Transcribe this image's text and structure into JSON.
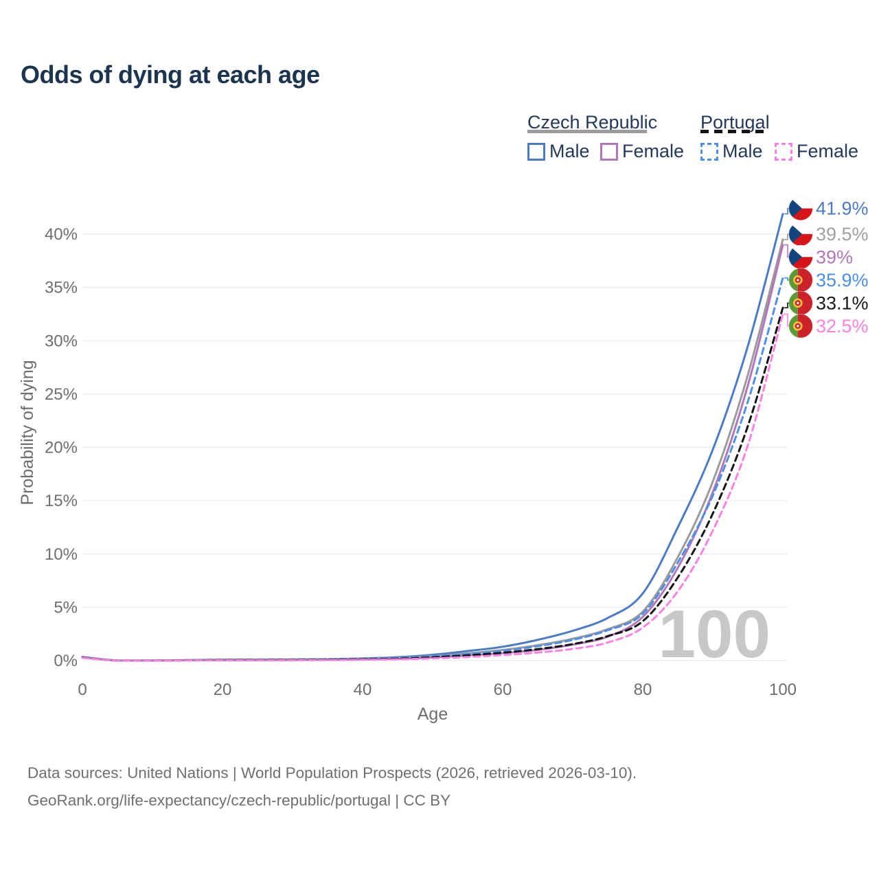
{
  "title": "Odds of dying at each age",
  "legend": {
    "groups": [
      {
        "label": "Czech Republic",
        "line_style": "solid",
        "line_color": "#9b9b9b",
        "items": [
          {
            "label": "Male",
            "color": "#4a7bc4",
            "dash": false
          },
          {
            "label": "Female",
            "color": "#b277b8",
            "dash": false
          }
        ]
      },
      {
        "label": "Portugal",
        "line_style": "dashed",
        "line_color": "#141414",
        "items": [
          {
            "label": "Male",
            "color": "#4a90e8",
            "dash": true
          },
          {
            "label": "Female",
            "color": "#fb80e3",
            "dash": true
          }
        ]
      }
    ]
  },
  "chart_data": {
    "type": "line",
    "title": "Odds of dying at each age",
    "xlabel": "Age",
    "ylabel": "Probability of dying",
    "xlim": [
      0,
      100
    ],
    "ylim": [
      0,
      43
    ],
    "grid": "horizontal",
    "watermark": "100",
    "x_ticks": [
      {
        "value": 0,
        "label": "0"
      },
      {
        "value": 20,
        "label": "20"
      },
      {
        "value": 40,
        "label": "40"
      },
      {
        "value": 60,
        "label": "60"
      },
      {
        "value": 80,
        "label": "80"
      },
      {
        "value": 100,
        "label": "100"
      }
    ],
    "y_ticks": [
      {
        "value": 0,
        "label": "0%"
      },
      {
        "value": 5,
        "label": "5%"
      },
      {
        "value": 10,
        "label": "10%"
      },
      {
        "value": 15,
        "label": "15%"
      },
      {
        "value": 20,
        "label": "20%"
      },
      {
        "value": 25,
        "label": "25%"
      },
      {
        "value": 30,
        "label": "30%"
      },
      {
        "value": 35,
        "label": "35%"
      },
      {
        "value": 40,
        "label": "40%"
      }
    ],
    "ages": [
      0,
      5,
      10,
      15,
      20,
      25,
      30,
      35,
      40,
      45,
      50,
      55,
      60,
      65,
      70,
      75,
      80,
      85,
      90,
      95,
      100
    ],
    "series": [
      {
        "name": "Czech Republic Male",
        "country": "Czech Republic",
        "sex": "Male",
        "flag": "cz",
        "color": "#4a7bc4",
        "label_color": "#4a7bc4",
        "dash": false,
        "end_label": "41.9%",
        "values": [
          0.35,
          0.01,
          0.01,
          0.05,
          0.09,
          0.1,
          0.11,
          0.14,
          0.2,
          0.32,
          0.55,
          0.9,
          1.3,
          1.95,
          2.8,
          4.0,
          6.3,
          12.5,
          19.8,
          29.5,
          41.9
        ]
      },
      {
        "name": "Czech Republic Both sexes",
        "country": "Czech Republic",
        "sex": "Both",
        "flag": "cz",
        "color": "#9b9b9b",
        "label_color": "#a0a0a0",
        "dash": false,
        "end_label": "39.5%",
        "values": [
          0.32,
          0.01,
          0.01,
          0.04,
          0.06,
          0.07,
          0.08,
          0.11,
          0.15,
          0.24,
          0.42,
          0.68,
          1.0,
          1.45,
          2.05,
          2.95,
          4.6,
          9.7,
          16.8,
          26.8,
          39.5
        ]
      },
      {
        "name": "Czech Republic Female",
        "country": "Czech Republic",
        "sex": "Female",
        "flag": "cz",
        "color": "#b277b8",
        "label_color": "#b277b8",
        "dash": false,
        "end_label": "39%",
        "values": [
          0.3,
          0.01,
          0.01,
          0.03,
          0.04,
          0.05,
          0.06,
          0.08,
          0.11,
          0.17,
          0.3,
          0.48,
          0.7,
          1.0,
          1.5,
          2.25,
          4.1,
          8.7,
          15.8,
          25.8,
          39.0
        ]
      },
      {
        "name": "Portugal Male",
        "country": "Portugal",
        "sex": "Male",
        "flag": "pt",
        "color": "#4a90e8",
        "label_color": "#4a90e8",
        "dash": true,
        "end_label": "35.9%",
        "values": [
          0.3,
          0.01,
          0.01,
          0.04,
          0.06,
          0.07,
          0.08,
          0.11,
          0.15,
          0.24,
          0.4,
          0.62,
          0.92,
          1.35,
          1.95,
          2.85,
          4.4,
          9.2,
          15.5,
          24.3,
          35.9
        ]
      },
      {
        "name": "Portugal Both sexes",
        "country": "Portugal",
        "sex": "Both",
        "flag": "pt",
        "color": "#141414",
        "label_color": "#1a1a1a",
        "dash": true,
        "end_label": "33.1%",
        "values": [
          0.28,
          0.01,
          0.01,
          0.03,
          0.05,
          0.05,
          0.06,
          0.08,
          0.12,
          0.18,
          0.31,
          0.5,
          0.74,
          1.08,
          1.55,
          2.3,
          3.7,
          7.8,
          13.8,
          22.0,
          33.1
        ]
      },
      {
        "name": "Portugal Female",
        "country": "Portugal",
        "sex": "Female",
        "flag": "pt",
        "color": "#fb80e3",
        "label_color": "#fb80e3",
        "dash": true,
        "end_label": "32.5%",
        "values": [
          0.26,
          0.01,
          0.01,
          0.02,
          0.03,
          0.03,
          0.04,
          0.05,
          0.08,
          0.12,
          0.21,
          0.34,
          0.52,
          0.76,
          1.1,
          1.7,
          3.1,
          6.5,
          12.2,
          20.2,
          32.5
        ]
      }
    ],
    "colors": {
      "grid": "#ededed",
      "tick_text": "#6e6e6e",
      "watermark": "#c8c8c8",
      "flag_cz_blue": "#11457e",
      "flag_cz_red": "#d7141a",
      "flag_pt_green": "#5a9b34",
      "flag_pt_red": "#cc2229",
      "flag_pt_yellow": "#f6c23d"
    }
  },
  "footer": {
    "line1": "Data sources: United Nations | World Population Prospects (2026, retrieved 2026-03-10).",
    "line2": "GeoRank.org/life-expectancy/czech-republic/portugal | CC BY"
  }
}
